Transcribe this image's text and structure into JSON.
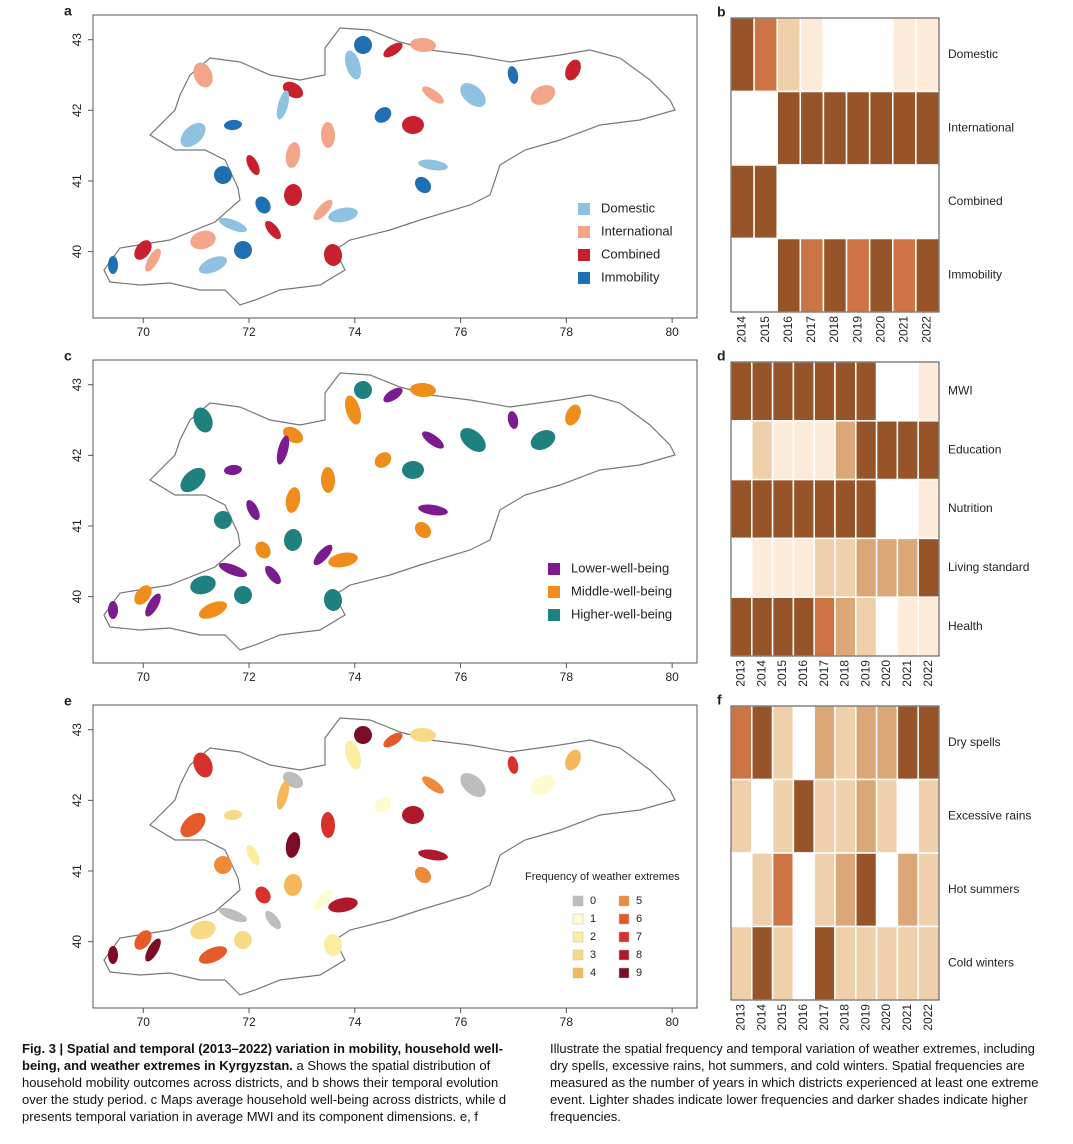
{
  "chart_data": [
    {
      "type": "map",
      "label": "a",
      "xlim": [
        69.05,
        80.47
      ],
      "ylim": [
        39.06,
        43.35
      ],
      "xticks": [
        70,
        72,
        74,
        76,
        78,
        80
      ],
      "yticks": [
        40,
        41,
        42,
        43
      ],
      "legend": [
        {
          "name": "Domestic",
          "color": "#8fc1e0"
        },
        {
          "name": "International",
          "color": "#f2a588"
        },
        {
          "name": "Combined",
          "color": "#c8202c"
        },
        {
          "name": "Immobility",
          "color": "#1f6fb5"
        }
      ]
    },
    {
      "type": "heatmap",
      "label": "b",
      "x": [
        2014,
        2015,
        2016,
        2017,
        2018,
        2019,
        2020,
        2021,
        2022
      ],
      "rows": [
        "Domestic",
        "International",
        "Combined",
        "Immobility"
      ],
      "colors": [
        "#ffffff",
        "#fdebd9",
        "#f0d0ab",
        "#dba776",
        "#cd7445",
        "#975428"
      ],
      "values": [
        [
          5,
          4,
          2,
          1,
          0,
          0,
          0,
          1,
          1
        ],
        [
          0,
          0,
          5,
          5,
          5,
          5,
          5,
          5,
          5
        ],
        [
          5,
          5,
          0,
          0,
          0,
          0,
          0,
          0,
          0
        ],
        [
          0,
          0,
          5,
          4,
          5,
          4,
          5,
          4,
          5
        ]
      ]
    },
    {
      "type": "map",
      "label": "c",
      "xlim": [
        69.05,
        80.47
      ],
      "ylim": [
        39.06,
        43.35
      ],
      "xticks": [
        70,
        72,
        74,
        76,
        78,
        80
      ],
      "yticks": [
        40,
        41,
        42,
        43
      ],
      "legend": [
        {
          "name": "Lower-well-being",
          "color": "#7b1b8f"
        },
        {
          "name": "Middle-well-being",
          "color": "#ee8c1c"
        },
        {
          "name": "Higher-well-being",
          "color": "#1f8080"
        }
      ]
    },
    {
      "type": "heatmap",
      "label": "d",
      "x": [
        2013,
        2014,
        2015,
        2016,
        2017,
        2018,
        2019,
        2020,
        2021,
        2022
      ],
      "rows": [
        "MWI",
        "Education",
        "Nutrition",
        "Living standard",
        "Health"
      ],
      "colors": [
        "#ffffff",
        "#fdebd9",
        "#f0d0ab",
        "#dba776",
        "#cd7445",
        "#975428"
      ],
      "values": [
        [
          5,
          5,
          5,
          5,
          5,
          5,
          5,
          0,
          0,
          1
        ],
        [
          0,
          2,
          1,
          1,
          1,
          3,
          5,
          5,
          5,
          5
        ],
        [
          5,
          5,
          5,
          5,
          5,
          5,
          5,
          0,
          0,
          1
        ],
        [
          0,
          1,
          1,
          1,
          2,
          2,
          3,
          3,
          3,
          5
        ],
        [
          5,
          5,
          5,
          5,
          4,
          3,
          2,
          0,
          1,
          1
        ]
      ]
    },
    {
      "type": "map",
      "label": "e",
      "xlim": [
        69.05,
        80.47
      ],
      "ylim": [
        39.06,
        43.35
      ],
      "xticks": [
        70,
        72,
        74,
        76,
        78,
        80
      ],
      "yticks": [
        40,
        41,
        42,
        43
      ],
      "legend_title": "Frequency of weather extremes",
      "legend": [
        {
          "name": 0,
          "color": "#bdbdbd"
        },
        {
          "name": 1,
          "color": "#fdfbd0"
        },
        {
          "name": 2,
          "color": "#fbeea0"
        },
        {
          "name": 3,
          "color": "#f8da85"
        },
        {
          "name": 4,
          "color": "#f5b75a"
        },
        {
          "name": 5,
          "color": "#ee8a3c"
        },
        {
          "name": 6,
          "color": "#e65a2a"
        },
        {
          "name": 7,
          "color": "#d8302a"
        },
        {
          "name": 8,
          "color": "#b0182c"
        },
        {
          "name": 9,
          "color": "#7d0d26"
        }
      ]
    },
    {
      "type": "heatmap",
      "label": "f",
      "x": [
        2013,
        2014,
        2015,
        2016,
        2017,
        2018,
        2019,
        2020,
        2021,
        2022
      ],
      "rows": [
        "Dry spells",
        "Excessive rains",
        "Hot summers",
        "Cold winters"
      ],
      "colors": [
        "#ffffff",
        "#fdebd9",
        "#f0d0ab",
        "#dba776",
        "#cd7445",
        "#975428"
      ],
      "values": [
        [
          4,
          5,
          2,
          0,
          3,
          2,
          3,
          3,
          5,
          5
        ],
        [
          2,
          0,
          2,
          5,
          2,
          2,
          3,
          2,
          0,
          2
        ],
        [
          0,
          2,
          4,
          0,
          2,
          3,
          5,
          0,
          3,
          2
        ],
        [
          2,
          5,
          2,
          0,
          5,
          2,
          2,
          2,
          2,
          2
        ]
      ]
    }
  ],
  "caption": {
    "label": "Fig. 3 |",
    "title": "Spatial and temporal (2013–2022) variation in mobility, household well-being, and weather extremes in Kyrgyzstan.",
    "text": "a Shows the spatial distribution of household mobility outcomes across districts, and b shows their temporal evolution over the study period. c Maps average household well-being across districts, while d presents temporal variation in average MWI and its component dimensions. e, f Illustrate the spatial frequency and temporal variation of weather extremes, including dry spells, excessive rains, hot summers, and cold winters. Spatial frequencies are measured as the number of years in which districts experienced at least one extreme event. Lighter shades indicate lower frequencies and darker shades indicate higher frequencies."
  }
}
